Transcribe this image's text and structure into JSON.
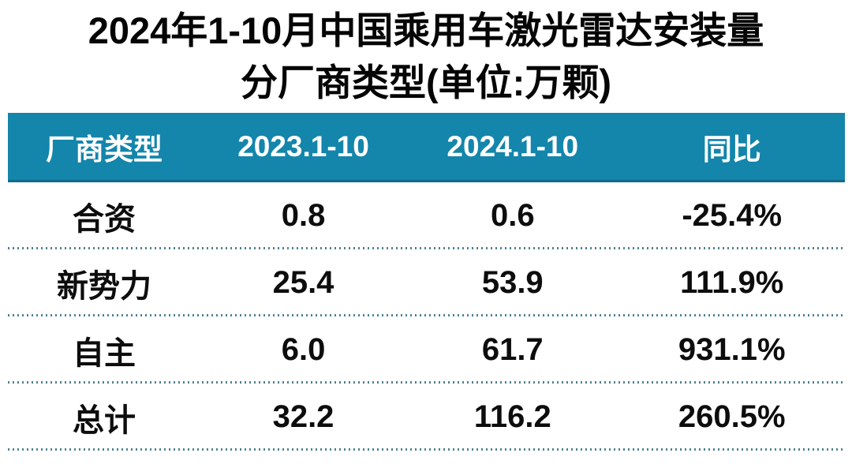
{
  "title": {
    "line1": "2024年1-10月中国乘用车激光雷达安装量",
    "line2": "分厂商类型(单位:万颗)"
  },
  "colors": {
    "header_bg": "#1485AB",
    "header_text": "#ffffff",
    "body_text": "#0d0d0d",
    "divider_dotted": "#4e8190",
    "background": "#ffffff"
  },
  "table": {
    "headers": [
      "厂商类型",
      "2023.1-10",
      "2024.1-10",
      "同比"
    ],
    "rows": [
      {
        "cells": [
          "合资",
          "0.8",
          "0.6",
          "-25.4%"
        ]
      },
      {
        "cells": [
          "新势力",
          "25.4",
          "53.9",
          "111.9%"
        ]
      },
      {
        "cells": [
          "自主",
          "6.0",
          "61.7",
          "931.1%"
        ]
      },
      {
        "cells": [
          "总计",
          "32.2",
          "116.2",
          "260.5%"
        ]
      }
    ]
  },
  "chart_data": {
    "type": "table",
    "title": "2024年1-10月中国乘用车激光雷达安装量分厂商类型(单位:万颗)",
    "unit": "万颗",
    "columns": [
      "厂商类型",
      "2023.1-10",
      "2024.1-10",
      "同比"
    ],
    "categories": [
      "合资",
      "新势力",
      "自主",
      "总计"
    ],
    "series": [
      {
        "name": "2023.1-10",
        "values": [
          0.8,
          25.4,
          6.0,
          32.2
        ]
      },
      {
        "name": "2024.1-10",
        "values": [
          0.6,
          53.9,
          61.7,
          116.2
        ]
      },
      {
        "name": "同比",
        "values": [
          "-25.4%",
          "111.9%",
          "931.1%",
          "260.5%"
        ]
      }
    ]
  }
}
